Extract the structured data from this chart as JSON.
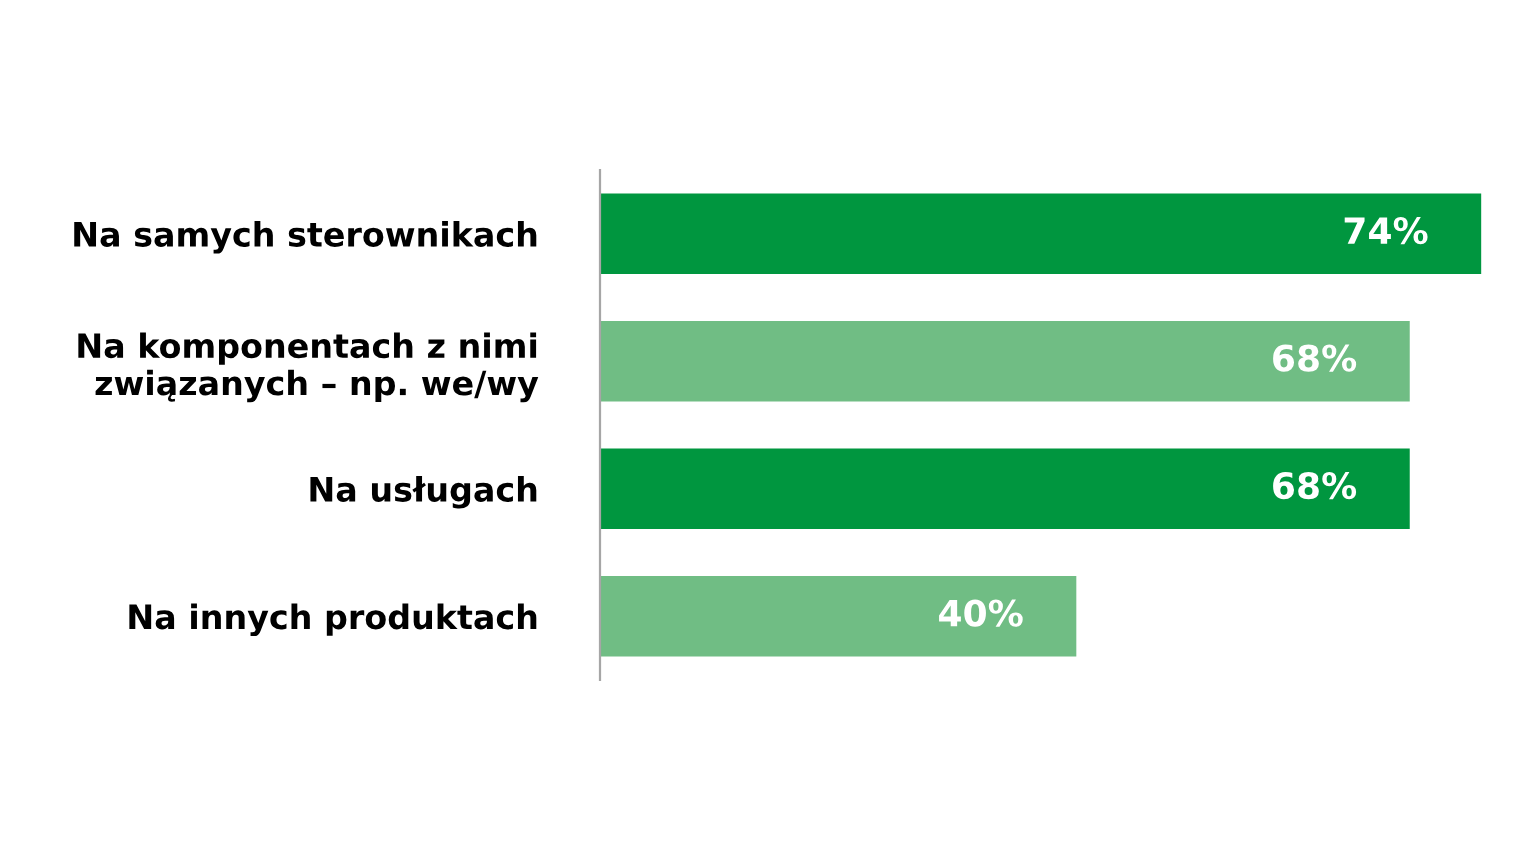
{
  "chart_data": {
    "type": "bar",
    "orientation": "horizontal",
    "categories": [
      "Na samych sterownikach",
      "Na komponentach z nimi\nzwiązanych – np. we/wy",
      "Na usługach",
      "Na innych produktach"
    ],
    "values": [
      74,
      68,
      68,
      40
    ],
    "colors": [
      "#00963f",
      "#70bd84",
      "#00963f",
      "#70bd84"
    ],
    "value_labels": [
      "74%",
      "68%",
      "68%",
      "40%"
    ],
    "grid": false,
    "legend": false
  }
}
